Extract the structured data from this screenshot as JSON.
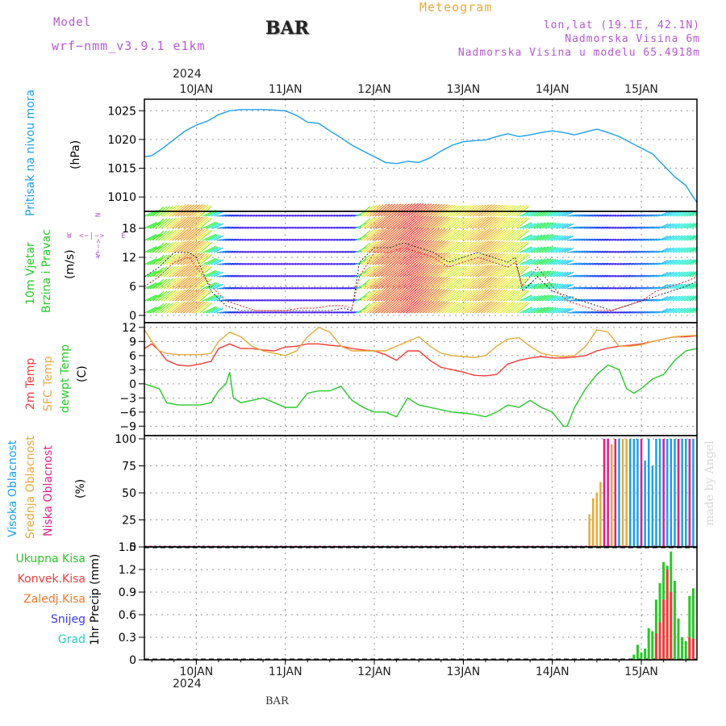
{
  "header": {
    "model_label": "Model",
    "model_name": "wrf−nmm_v3.9.1  e1km",
    "station": "BAR",
    "meteogram": "Meteogram",
    "lonlat": "lon,lat (19.1E, 42.1N)",
    "elevation": "Nadmorska Visina 6m",
    "model_elevation": "Nadmorska Visina u modelu 65.4918m",
    "footer_station": "BAR",
    "watermark": "made by Angel"
  },
  "colors": {
    "pressure": "#1ea0e6",
    "temp2m": "#f03c3c",
    "sfc_temp": "#e6aa3c",
    "dewpoint": "#28c828",
    "violet": "#b45ad2",
    "precip_total": "#28c828",
    "precip_conv": "#f03c3c",
    "precip_frozen": "#f07828",
    "snow": "#3c3cf0",
    "hail": "#28c8c8",
    "cloud_high": "#1ea0e6",
    "cloud_mid": "#e6aa3c",
    "cloud_low": "#e0208c"
  },
  "time_axis": {
    "year": "2024",
    "days": [
      "10JAN",
      "11JAN",
      "12JAN",
      "13JAN",
      "14JAN",
      "15JAN"
    ],
    "day_hours": [
      0,
      24,
      48,
      72,
      96,
      120
    ],
    "start_hour": -14,
    "end_hour": 135
  },
  "chart_data": [
    {
      "type": "line",
      "panel": "pressure",
      "ylabel": "(hPa)",
      "side_labels": [
        "Pritisak na nivou mora"
      ],
      "ylim": [
        1007.5,
        1027
      ],
      "yticks": [
        "1010",
        "1015",
        "1020",
        "1025"
      ],
      "ytick_values": [
        1010,
        1015,
        1020,
        1025
      ],
      "grid": true,
      "series": [
        {
          "key": "pressure",
          "x": [
            -14,
            -12,
            -9,
            -6,
            -3,
            0,
            3,
            6,
            9,
            12,
            15,
            18,
            21,
            24,
            27,
            30,
            33,
            36,
            39,
            42,
            45,
            48,
            51,
            54,
            57,
            60,
            63,
            66,
            69,
            72,
            75,
            78,
            81,
            84,
            87,
            90,
            93,
            96,
            99,
            102,
            105,
            108,
            111,
            114,
            117,
            120,
            123,
            126,
            129,
            132,
            135
          ],
          "y": [
            1017,
            1017.2,
            1018.5,
            1020,
            1021.5,
            1022.5,
            1023.2,
            1024.3,
            1025,
            1025.2,
            1025.2,
            1025.2,
            1025.1,
            1025,
            1024.2,
            1023,
            1022.8,
            1021.5,
            1020.3,
            1019,
            1018,
            1017,
            1016,
            1015.8,
            1016.2,
            1016,
            1016.8,
            1018,
            1019,
            1019.6,
            1019.8,
            1019.9,
            1020.5,
            1021,
            1020.5,
            1020.8,
            1021.2,
            1021.5,
            1021.2,
            1020.8,
            1021.3,
            1021.8,
            1021.2,
            1020.5,
            1019.5,
            1018.5,
            1017.5,
            1015.5,
            1013.5,
            1012,
            1009
          ]
        }
      ]
    },
    {
      "type": "line",
      "panel": "wind",
      "ylabel": "(m/s)",
      "side_labels": [
        "10m Vjetar",
        "Brzina i Pravac"
      ],
      "compass": {
        "n": "N",
        "e": "E",
        "w": "W",
        "s": "S",
        "line1": "<−|−>",
        "line2": "<−−>"
      },
      "ylim": [
        -1.5,
        21.5
      ],
      "yticks": [
        "0",
        "6",
        "12",
        "18"
      ],
      "ytick_values": [
        0,
        6,
        12,
        18
      ],
      "grid": true,
      "series": [
        {
          "key": "speed",
          "x": [
            -14,
            -10,
            -6,
            -2,
            0,
            4,
            8,
            12,
            16,
            20,
            24,
            28,
            32,
            36,
            40,
            42,
            44,
            48,
            52,
            56,
            60,
            64,
            68,
            72,
            76,
            80,
            84,
            86,
            88,
            92,
            96,
            100,
            104,
            108,
            112,
            116,
            120,
            124,
            128,
            132,
            135
          ],
          "y": [
            8,
            10,
            13,
            13,
            12,
            5,
            2,
            1,
            1,
            1,
            1,
            1,
            1,
            1,
            1.5,
            1,
            11,
            14,
            14,
            15,
            14,
            13,
            11,
            12,
            13,
            12,
            11,
            12,
            5,
            8,
            5,
            4,
            3,
            2,
            1,
            2,
            3,
            4,
            5,
            6,
            7
          ]
        },
        {
          "key": "gust",
          "x": [
            -14,
            -10,
            -6,
            -2,
            0,
            4,
            8,
            12,
            16,
            20,
            24,
            28,
            32,
            36,
            40,
            42,
            44,
            48,
            52,
            56,
            60,
            64,
            68,
            72,
            76,
            80,
            84,
            86,
            88,
            92,
            96,
            100,
            104,
            108,
            112,
            116,
            120,
            124,
            128,
            132,
            135
          ],
          "y": [
            6,
            8,
            11,
            12,
            10,
            6,
            3,
            2,
            1,
            1,
            1,
            1.5,
            1.5,
            2,
            2,
            1.5,
            8,
            13,
            13,
            14,
            13,
            12,
            10,
            11,
            12,
            11,
            10,
            11,
            6,
            10,
            6,
            3,
            2,
            1,
            1,
            2,
            3,
            5,
            6,
            7,
            8
          ]
        }
      ]
    },
    {
      "type": "line",
      "panel": "temperature",
      "ylabel": "(C)",
      "side_labels": [
        "2m Temp",
        "SFC Temp",
        "dewpt Temp"
      ],
      "ylim": [
        -11,
        13
      ],
      "yticks": [
        "12",
        "9",
        "6",
        "3",
        "0",
        "−3",
        "−6",
        "−9"
      ],
      "ytick_values": [
        12,
        9,
        6,
        3,
        0,
        -3,
        -6,
        -9
      ],
      "grid": true,
      "series": [
        {
          "key": "temp2m",
          "x": [
            -14,
            -12,
            -10,
            -8,
            -5,
            -2,
            1,
            4,
            6,
            9,
            12,
            15,
            18,
            21,
            24,
            27,
            30,
            33,
            36,
            39,
            42,
            45,
            48,
            51,
            54,
            57,
            60,
            63,
            66,
            69,
            72,
            75,
            78,
            81,
            84,
            87,
            90,
            93,
            96,
            99,
            102,
            105,
            108,
            111,
            114,
            117,
            120,
            123,
            126,
            129,
            132,
            135
          ],
          "y": [
            7.5,
            8.5,
            7,
            5,
            4,
            3.8,
            4.2,
            4.8,
            7.5,
            8.5,
            7.5,
            7.5,
            7.2,
            7,
            7.8,
            8,
            8.5,
            8.5,
            8.2,
            8,
            7.5,
            7.2,
            7,
            6.2,
            5,
            7,
            7,
            5,
            3.5,
            3,
            2.5,
            1.8,
            1.7,
            2,
            4.2,
            5,
            5.5,
            5.8,
            5.5,
            5.5,
            5.7,
            6,
            7,
            7.6,
            8,
            8.2,
            8.5,
            9,
            9.5,
            10,
            10,
            10.2
          ]
        },
        {
          "key": "sfc_temp",
          "x": [
            -14,
            -12,
            -10,
            -8,
            -5,
            -2,
            1,
            4,
            6,
            9,
            12,
            15,
            18,
            21,
            24,
            27,
            30,
            33,
            36,
            39,
            42,
            45,
            48,
            51,
            54,
            57,
            60,
            63,
            66,
            69,
            72,
            75,
            78,
            81,
            84,
            87,
            90,
            93,
            96,
            99,
            102,
            105,
            108,
            111,
            114,
            117,
            120,
            123,
            126,
            129,
            132,
            135
          ],
          "y": [
            11.5,
            9,
            7,
            6.5,
            6.2,
            6.2,
            6.2,
            6.5,
            9,
            11,
            10,
            8,
            7,
            6.5,
            6,
            7,
            10,
            12,
            11,
            8,
            7,
            7,
            7,
            7,
            8,
            9,
            10,
            8,
            6.5,
            6,
            5.8,
            5.6,
            6,
            8,
            9.5,
            9.8,
            8,
            6.5,
            6,
            5.8,
            6,
            8,
            11.5,
            11,
            8,
            8,
            8.3,
            9,
            9.5,
            10,
            10.2,
            10.3
          ]
        },
        {
          "key": "dewpoint",
          "x": [
            -14,
            -12,
            -10,
            -8,
            -5,
            -2,
            1,
            4,
            6,
            8,
            9,
            10,
            12,
            15,
            18,
            21,
            24,
            27,
            30,
            33,
            36,
            39,
            42,
            45,
            48,
            51,
            54,
            57,
            60,
            63,
            66,
            69,
            72,
            75,
            78,
            81,
            84,
            87,
            90,
            93,
            96,
            99,
            100,
            102,
            105,
            108,
            111,
            114,
            116,
            118,
            120,
            123,
            126,
            129,
            132,
            135
          ],
          "y": [
            0,
            -0.5,
            -1,
            -4,
            -4.5,
            -4.5,
            -4.5,
            -4,
            -1.5,
            0,
            2.5,
            -3,
            -4,
            -3.5,
            -3,
            -4,
            -5,
            -5,
            -2,
            -1.5,
            -1.5,
            -0.5,
            -3.5,
            -5,
            -6,
            -6,
            -7,
            -3,
            -4.5,
            -5,
            -5.5,
            -6,
            -6.2,
            -6.5,
            -7,
            -6,
            -4.5,
            -5,
            -3.5,
            -5,
            -6,
            -9,
            -9,
            -5,
            -1,
            2,
            4,
            3,
            -1,
            -2,
            -1,
            1,
            2,
            5,
            7,
            7.5
          ]
        }
      ]
    },
    {
      "type": "bar",
      "panel": "clouds",
      "ylabel": "(%)",
      "side_labels": [
        "Visoka Oblacnost",
        "Srednja Oblacnost",
        "Niska Oblacnost"
      ],
      "ylim": [
        0,
        103
      ],
      "yticks": [
        "0",
        "25",
        "50",
        "75",
        "100"
      ],
      "ytick_values": [
        0,
        25,
        50,
        75,
        100
      ],
      "grid": true,
      "series": [
        {
          "key": "cloud_high",
          "x": [
            114,
            117,
            118,
            119,
            120,
            121,
            122,
            123,
            124,
            125,
            126,
            127,
            128,
            129,
            130,
            131,
            132,
            133,
            134
          ],
          "values": [
            100,
            100,
            100,
            100,
            70,
            80,
            100,
            75,
            100,
            100,
            100,
            100,
            100,
            100,
            100,
            100,
            100,
            100,
            100
          ]
        },
        {
          "key": "cloud_mid",
          "x": [
            106,
            107,
            108,
            109,
            110,
            111,
            112,
            113,
            115,
            116
          ],
          "values": [
            30,
            45,
            50,
            60,
            100,
            100,
            95,
            100,
            100,
            100
          ]
        },
        {
          "key": "cloud_low",
          "x": [
            110,
            111,
            113,
            120,
            126,
            130,
            133
          ],
          "values": [
            100,
            100,
            100,
            100,
            100,
            100,
            100
          ]
        }
      ]
    },
    {
      "type": "bar",
      "panel": "precip",
      "ylabel": "1hr Precip (mm)",
      "side_labels": [
        "Ukupna  Kisa",
        "Konvek.Kisa",
        "Zaledj.Kisa",
        "Snijeg",
        "Grad"
      ],
      "ylim": [
        0,
        1.5
      ],
      "yticks": [
        "0",
        "0.3",
        "0.6",
        "0.9",
        "1.2",
        "1.5"
      ],
      "ytick_values": [
        0,
        0.3,
        0.6,
        0.9,
        1.2,
        1.5
      ],
      "grid": true,
      "series": [
        {
          "key": "precip_total",
          "x": [
            118,
            119,
            120,
            121,
            122,
            123,
            124,
            125,
            126,
            127,
            128,
            129,
            130,
            131,
            132,
            133,
            134
          ],
          "values": [
            0.07,
            0.2,
            0.1,
            0.15,
            0.42,
            0.38,
            0.8,
            1.02,
            1.3,
            1.25,
            1.44,
            1.05,
            0.55,
            0.3,
            0.25,
            0.85,
            0.95
          ]
        },
        {
          "key": "precip_conv",
          "x": [
            124,
            125,
            126,
            127,
            128,
            133,
            134
          ],
          "values": [
            0.35,
            0.5,
            0.8,
            1.2,
            0.9,
            0.3,
            0.28
          ]
        }
      ]
    }
  ]
}
